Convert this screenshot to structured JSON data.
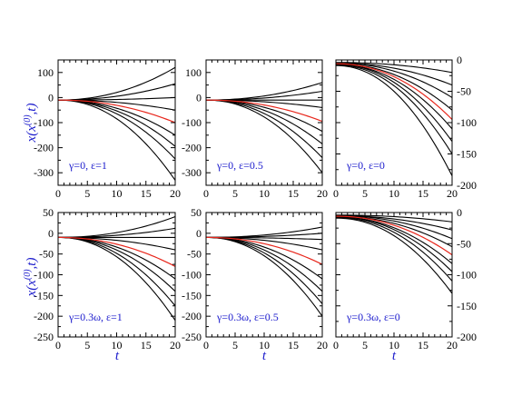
{
  "figure": {
    "ylabel_top": {
      "main": "x(x",
      "sup": "(0)",
      "tail": ",t)"
    },
    "ylabel_bottom": {
      "main": "x(x",
      "sup": "(0)",
      "tail": ",t)"
    },
    "xlabel": "t",
    "colors": {
      "curve": "#000000",
      "highlight": "#e8261b",
      "label": "#1a1acc"
    }
  },
  "chart_data": [
    {
      "type": "line",
      "annotation": "γ=0, ε=1",
      "xlim": [
        0,
        20
      ],
      "ylim": [
        -350,
        150
      ],
      "xticks": [
        "0",
        "5",
        "10",
        "15",
        "20"
      ],
      "yticks": [
        "100",
        "0",
        "-100",
        "-200",
        "-300"
      ],
      "ytick_side": "left",
      "x": [
        0,
        20
      ],
      "series": [
        {
          "start": -10,
          "end": 120,
          "highlight": false
        },
        {
          "start": -10,
          "end": 55,
          "highlight": false
        },
        {
          "start": -10,
          "end": 0,
          "highlight": false
        },
        {
          "start": -10,
          "end": -50,
          "highlight": false
        },
        {
          "start": -10,
          "end": -100,
          "highlight": true
        },
        {
          "start": -10,
          "end": -150,
          "highlight": false
        },
        {
          "start": -10,
          "end": -195,
          "highlight": false
        },
        {
          "start": -10,
          "end": -245,
          "highlight": false
        },
        {
          "start": -10,
          "end": -330,
          "highlight": false
        }
      ]
    },
    {
      "type": "line",
      "annotation": "γ=0, ε=0.5",
      "xlim": [
        0,
        20
      ],
      "ylim": [
        -350,
        150
      ],
      "xticks": [
        "0",
        "5",
        "10",
        "15",
        "20"
      ],
      "yticks": [
        "100",
        "0",
        "-100",
        "-200",
        "-300"
      ],
      "ytick_side": "left",
      "x": [
        0,
        20
      ],
      "series": [
        {
          "start": -10,
          "end": 60,
          "highlight": false
        },
        {
          "start": -10,
          "end": 25,
          "highlight": false
        },
        {
          "start": -10,
          "end": -10,
          "highlight": false
        },
        {
          "start": -10,
          "end": -40,
          "highlight": false
        },
        {
          "start": -10,
          "end": -95,
          "highlight": true
        },
        {
          "start": -10,
          "end": -135,
          "highlight": false
        },
        {
          "start": -10,
          "end": -185,
          "highlight": false
        },
        {
          "start": -10,
          "end": -240,
          "highlight": false
        },
        {
          "start": -10,
          "end": -300,
          "highlight": false
        }
      ]
    },
    {
      "type": "line",
      "annotation": "γ=0, ε=0",
      "xlim": [
        0,
        20
      ],
      "ylim": [
        -200,
        0
      ],
      "xticks": [
        "0",
        "5",
        "10",
        "15",
        "20"
      ],
      "yticks": [
        "0",
        "-50",
        "-100",
        "-150",
        "-200"
      ],
      "ytick_side": "right",
      "x": [
        0,
        20
      ],
      "series": [
        {
          "start": -4,
          "end": -20,
          "highlight": false
        },
        {
          "start": -5,
          "end": -40,
          "highlight": false
        },
        {
          "start": -5,
          "end": -60,
          "highlight": false
        },
        {
          "start": -6,
          "end": -80,
          "highlight": false
        },
        {
          "start": -6,
          "end": -95,
          "highlight": true
        },
        {
          "start": -7,
          "end": -110,
          "highlight": false
        },
        {
          "start": -7,
          "end": -130,
          "highlight": false
        },
        {
          "start": -8,
          "end": -150,
          "highlight": false
        },
        {
          "start": -9,
          "end": -185,
          "highlight": false
        }
      ]
    },
    {
      "type": "line",
      "annotation": "γ=0.3ω, ε=1",
      "xlim": [
        0,
        20
      ],
      "ylim": [
        -250,
        50
      ],
      "xticks": [
        "0",
        "5",
        "10",
        "15",
        "20"
      ],
      "yticks": [
        "50",
        "0",
        "-50",
        "-100",
        "-150",
        "-200",
        "-250"
      ],
      "ytick_side": "left",
      "x": [
        0,
        20
      ],
      "series": [
        {
          "start": -10,
          "end": 40,
          "highlight": false
        },
        {
          "start": -10,
          "end": 12,
          "highlight": false
        },
        {
          "start": -10,
          "end": -10,
          "highlight": false
        },
        {
          "start": -10,
          "end": -40,
          "highlight": false
        },
        {
          "start": -10,
          "end": -80,
          "highlight": true
        },
        {
          "start": -10,
          "end": -110,
          "highlight": false
        },
        {
          "start": -10,
          "end": -140,
          "highlight": false
        },
        {
          "start": -10,
          "end": -175,
          "highlight": false
        },
        {
          "start": -10,
          "end": -210,
          "highlight": false
        }
      ]
    },
    {
      "type": "line",
      "annotation": "γ=0.3ω, ε=0.5",
      "xlim": [
        0,
        20
      ],
      "ylim": [
        -250,
        50
      ],
      "xticks": [
        "0",
        "5",
        "10",
        "15",
        "20"
      ],
      "yticks": [
        "50",
        "0",
        "-50",
        "-100",
        "-150",
        "-200",
        "-250"
      ],
      "ytick_side": "left",
      "x": [
        0,
        20
      ],
      "series": [
        {
          "start": -10,
          "end": 15,
          "highlight": false
        },
        {
          "start": -10,
          "end": 0,
          "highlight": false
        },
        {
          "start": -10,
          "end": -15,
          "highlight": false
        },
        {
          "start": -10,
          "end": -40,
          "highlight": false
        },
        {
          "start": -10,
          "end": -75,
          "highlight": true
        },
        {
          "start": -10,
          "end": -110,
          "highlight": false
        },
        {
          "start": -10,
          "end": -140,
          "highlight": false
        },
        {
          "start": -10,
          "end": -170,
          "highlight": false
        },
        {
          "start": -10,
          "end": -200,
          "highlight": false
        }
      ]
    },
    {
      "type": "line",
      "annotation": "γ=0.3ω, ε=0",
      "xlim": [
        0,
        20
      ],
      "ylim": [
        -200,
        0
      ],
      "xticks": [
        "0",
        "5",
        "10",
        "15",
        "20"
      ],
      "yticks": [
        "0",
        "-50",
        "-100",
        "-150",
        "-200"
      ],
      "ytick_side": "right",
      "x": [
        0,
        20
      ],
      "series": [
        {
          "start": -4,
          "end": -15,
          "highlight": false
        },
        {
          "start": -5,
          "end": -28,
          "highlight": false
        },
        {
          "start": -5,
          "end": -42,
          "highlight": false
        },
        {
          "start": -6,
          "end": -55,
          "highlight": false
        },
        {
          "start": -6,
          "end": -68,
          "highlight": true
        },
        {
          "start": -7,
          "end": -82,
          "highlight": false
        },
        {
          "start": -7,
          "end": -95,
          "highlight": false
        },
        {
          "start": -8,
          "end": -110,
          "highlight": false
        },
        {
          "start": -9,
          "end": -130,
          "highlight": false
        }
      ]
    }
  ]
}
